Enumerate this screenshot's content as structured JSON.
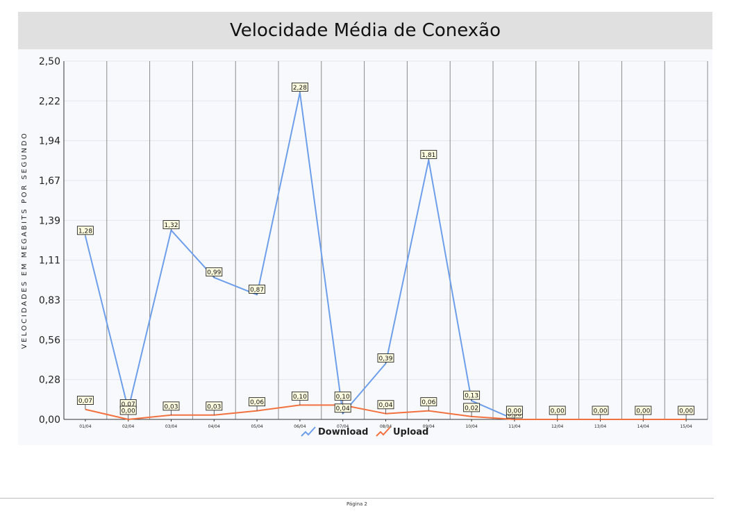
{
  "chart_data": {
    "type": "line",
    "title": "Velocidade Média de Conexão",
    "ylabel": "VELOCIDADES EM MEGABITS POR SEGUNDO",
    "xlabel": "",
    "ylim": [
      0,
      2.5
    ],
    "yticks": [
      "0,00",
      "0,28",
      "0,56",
      "0,83",
      "1,11",
      "1,39",
      "1,67",
      "1,94",
      "2,22",
      "2,50"
    ],
    "categories": [
      "01/04",
      "02/04",
      "03/04",
      "04/04",
      "05/04",
      "06/04",
      "07/04",
      "08/04",
      "09/04",
      "10/04",
      "11/04",
      "12/04",
      "13/04",
      "14/04",
      "15/04"
    ],
    "series": [
      {
        "name": "Download",
        "color": "#6d9eeb",
        "values": [
          1.28,
          0.07,
          1.32,
          0.99,
          0.87,
          2.28,
          0.04,
          0.39,
          1.81,
          0.13,
          0.0,
          null,
          null,
          null,
          null
        ],
        "labels": [
          "1,28",
          "0,07",
          "1,32",
          "0,99",
          "0,87",
          "2,28",
          "0,04",
          "0,39",
          "1,81",
          "0,13",
          "0,00",
          "",
          "",
          "",
          ""
        ]
      },
      {
        "name": "Upload",
        "color": "#f2713e",
        "values": [
          0.07,
          0.0,
          0.03,
          0.03,
          0.06,
          0.1,
          0.1,
          0.04,
          0.06,
          0.02,
          0.0,
          0.0,
          0.0,
          0.0,
          0.0
        ],
        "labels": [
          "0,07",
          "0,00",
          "0,03",
          "0,03",
          "0,06",
          "0,10",
          "0,10",
          "0,04",
          "0,06",
          "0,02",
          "0,00",
          "0,00",
          "0,00",
          "0,00",
          "0,00"
        ]
      }
    ],
    "grid": true,
    "legend_position": "bottom-center"
  },
  "footer": {
    "page_label": "Página 2"
  }
}
